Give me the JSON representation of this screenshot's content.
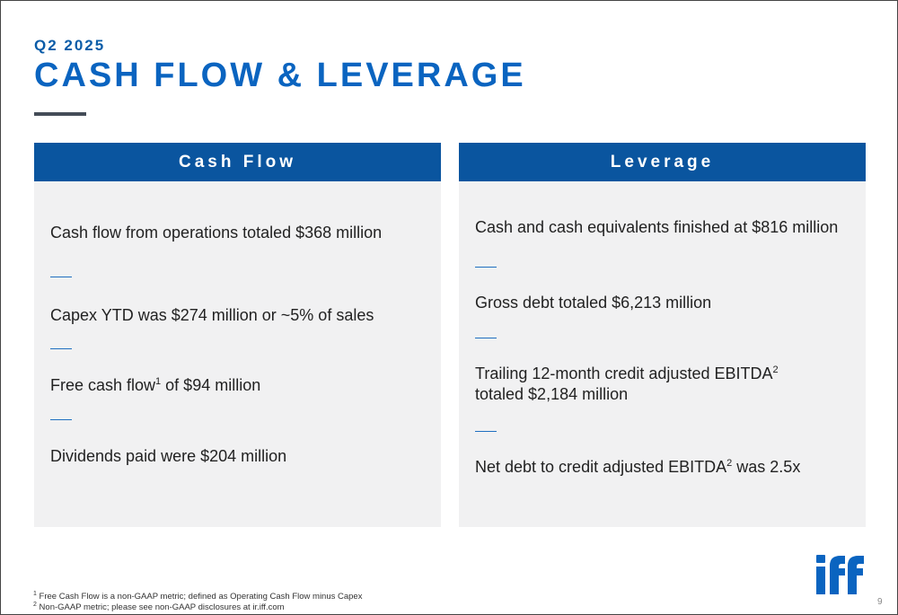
{
  "header": {
    "eyebrow": "Q2 2025",
    "title": "CASH FLOW & LEVERAGE"
  },
  "cash_flow": {
    "heading": "Cash Flow",
    "item1": "Cash flow from operations totaled $368 million",
    "item2": "Capex YTD was $274 million or ~5% of sales",
    "item3_pre": "Free cash flow",
    "item3_sup": "1",
    "item3_post": " of $94 million",
    "item4": "Dividends paid were $204 million"
  },
  "leverage": {
    "heading": "Leverage",
    "item1": "Cash and cash equivalents finished at $816 million",
    "item2": "Gross debt totaled $6,213 million",
    "item3_line1": "Trailing 12-month credit adjusted EBITDA",
    "item3_sup": "2",
    "item3_line2": "totaled $2,184 million",
    "item4_pre": "Net debt to credit adjusted EBITDA",
    "item4_sup": "2",
    "item4_post": " was 2.5x"
  },
  "footnotes": {
    "fn1_num": "1",
    "fn1_text": " Free Cash Flow is a non-GAAP metric; defined as Operating Cash Flow minus Capex",
    "fn2_num": "2",
    "fn2_text": " Non-GAAP metric; please see non-GAAP disclosures at ir.iff.com"
  },
  "logo": {
    "text": "iff",
    "color": "#0a64c0"
  },
  "page_number": "9",
  "colors": {
    "accent": "#0a64c0",
    "panel_header": "#0a559f",
    "panel_bg": "#f1f1f2",
    "rule": "#444c57"
  }
}
